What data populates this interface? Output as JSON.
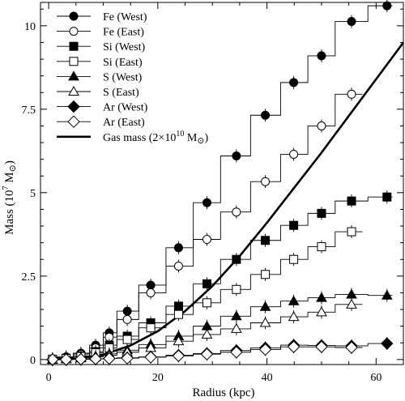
{
  "chart_data": {
    "type": "line",
    "xlabel": "Radius (kpc)",
    "ylabel_main": "Mass (10",
    "ylabel_sup": "7",
    "ylabel_unit": " M",
    "ylabel_close": ")",
    "xlim": [
      -1.5,
      65
    ],
    "ylim": [
      -0.15,
      10.7
    ],
    "x_ticks": [
      0,
      20,
      40,
      60
    ],
    "x_tick_labels": [
      "0",
      "20",
      "40",
      "60"
    ],
    "y_ticks": [
      0,
      2.5,
      5,
      7.5,
      10
    ],
    "y_tick_labels": [
      "0",
      "2.5",
      "5",
      "7.5",
      "10"
    ],
    "legend_position": "top-left",
    "series": [
      {
        "name": "Fe (West)",
        "marker": "circle",
        "filled": true,
        "x": [
          0.7,
          3.2,
          5.9,
          8.6,
          11.1,
          14.4,
          18.7,
          23.8,
          29.0,
          34.4,
          39.7,
          44.9,
          50.0,
          55.5,
          62.0
        ],
        "y": [
          0.02,
          0.08,
          0.19,
          0.43,
          0.8,
          1.45,
          2.23,
          3.35,
          4.7,
          6.1,
          7.32,
          8.3,
          9.1,
          10.13,
          10.6
        ],
        "edges": [
          0,
          1.5,
          4.5,
          7.5,
          10,
          12.5,
          16.5,
          21.5,
          26.5,
          31.5,
          37,
          42.5,
          47.5,
          52.5,
          58.5,
          63
        ]
      },
      {
        "name": "Fe (East)",
        "marker": "circle",
        "filled": false,
        "x": [
          0.7,
          3.2,
          5.9,
          8.6,
          11.1,
          14.4,
          18.7,
          23.8,
          29.0,
          34.4,
          39.7,
          44.9,
          50.0,
          55.5
        ],
        "y": [
          0.01,
          0.06,
          0.16,
          0.35,
          0.67,
          1.2,
          2.0,
          2.8,
          3.6,
          4.42,
          5.33,
          6.15,
          7.0,
          7.95
        ],
        "edges": [
          0,
          1.5,
          4.5,
          7.5,
          10,
          12.5,
          16.5,
          21.5,
          26.5,
          31.5,
          37,
          42.5,
          47.5,
          52.5,
          57.5
        ]
      },
      {
        "name": "Si (West)",
        "marker": "square",
        "filled": true,
        "x": [
          0.7,
          3.2,
          5.9,
          8.6,
          11.1,
          14.4,
          18.7,
          23.8,
          29.0,
          34.4,
          39.7,
          44.9,
          50.0,
          55.5,
          62.0
        ],
        "y": [
          0.01,
          0.04,
          0.11,
          0.24,
          0.43,
          0.7,
          1.1,
          1.6,
          2.27,
          3.0,
          3.57,
          4.02,
          4.38,
          4.75,
          4.87
        ],
        "edges": [
          0,
          1.5,
          4.5,
          7.5,
          10,
          12.5,
          16.5,
          21.5,
          26.5,
          31.5,
          37,
          42.5,
          47.5,
          52.5,
          58.5,
          63
        ]
      },
      {
        "name": "Si (East)",
        "marker": "square",
        "filled": false,
        "x": [
          0.7,
          3.2,
          5.9,
          8.6,
          11.1,
          14.4,
          18.7,
          23.8,
          29.0,
          34.4,
          39.7,
          44.9,
          50.0,
          55.5
        ],
        "y": [
          0.01,
          0.03,
          0.09,
          0.2,
          0.35,
          0.6,
          0.95,
          1.35,
          1.7,
          2.1,
          2.55,
          3.0,
          3.38,
          3.83
        ],
        "edges": [
          0,
          1.5,
          4.5,
          7.5,
          10,
          12.5,
          16.5,
          21.5,
          26.5,
          31.5,
          37,
          42.5,
          47.5,
          52.5,
          57.5
        ]
      },
      {
        "name": "S (West)",
        "marker": "triangle",
        "filled": true,
        "x": [
          0.7,
          3.2,
          5.9,
          8.6,
          11.1,
          14.4,
          18.7,
          23.8,
          29.0,
          34.4,
          39.7,
          44.9,
          50.0,
          55.5,
          62.0
        ],
        "y": [
          0.0,
          0.02,
          0.05,
          0.1,
          0.17,
          0.28,
          0.45,
          0.7,
          1.0,
          1.3,
          1.58,
          1.75,
          1.85,
          1.95,
          1.92
        ],
        "edges": [
          0,
          1.5,
          4.5,
          7.5,
          10,
          12.5,
          16.5,
          21.5,
          26.5,
          31.5,
          37,
          42.5,
          47.5,
          52.5,
          58.5,
          63
        ]
      },
      {
        "name": "S (East)",
        "marker": "triangle",
        "filled": false,
        "x": [
          0.7,
          3.2,
          5.9,
          8.6,
          11.1,
          14.4,
          18.7,
          23.8,
          29.0,
          34.4,
          39.7,
          44.9,
          50.0,
          55.5
        ],
        "y": [
          0.0,
          0.01,
          0.04,
          0.08,
          0.13,
          0.22,
          0.35,
          0.55,
          0.75,
          0.92,
          1.1,
          1.28,
          1.42,
          1.65
        ],
        "edges": [
          0,
          1.5,
          4.5,
          7.5,
          10,
          12.5,
          16.5,
          21.5,
          26.5,
          31.5,
          37,
          42.5,
          47.5,
          52.5,
          57.5
        ]
      },
      {
        "name": "Ar (West)",
        "marker": "diamond",
        "filled": true,
        "x": [
          0.7,
          3.2,
          5.9,
          8.6,
          11.1,
          14.4,
          18.7,
          23.8,
          29.0,
          34.4,
          39.7,
          44.9,
          50.0,
          55.5,
          62.0
        ],
        "y": [
          0.0,
          0.0,
          0.01,
          0.02,
          0.03,
          0.05,
          0.08,
          0.13,
          0.18,
          0.27,
          0.35,
          0.43,
          0.42,
          0.41,
          0.48
        ],
        "edges": [
          0,
          1.5,
          4.5,
          7.5,
          10,
          12.5,
          16.5,
          21.5,
          26.5,
          31.5,
          37,
          42.5,
          47.5,
          52.5,
          58.5,
          63
        ]
      },
      {
        "name": "Ar (East)",
        "marker": "diamond",
        "filled": false,
        "x": [
          0.7,
          3.2,
          5.9,
          8.6,
          11.1,
          14.4,
          18.7,
          23.8,
          29.0,
          34.4,
          39.7,
          44.9,
          50.0,
          55.5
        ],
        "y": [
          0.0,
          0.0,
          0.01,
          0.02,
          0.03,
          0.04,
          0.07,
          0.11,
          0.16,
          0.22,
          0.3,
          0.38,
          0.38,
          0.36
        ],
        "edges": [
          0,
          1.5,
          4.5,
          7.5,
          10,
          12.5,
          16.5,
          21.5,
          26.5,
          31.5,
          37,
          42.5,
          47.5,
          52.5,
          57.5
        ]
      }
    ],
    "gas_curve": {
      "name_main": "Gas mass (2×10",
      "name_sup": "10",
      "name_unit": " M",
      "name_close": ")",
      "x": [
        0,
        5,
        10,
        15,
        20,
        25,
        30,
        35,
        40,
        45,
        50,
        55,
        60,
        65
      ],
      "y": [
        0.0,
        0.03,
        0.15,
        0.42,
        0.85,
        1.45,
        2.2,
        3.1,
        4.1,
        5.15,
        6.2,
        7.3,
        8.4,
        9.5
      ]
    },
    "sun_symbol": "⊙"
  }
}
